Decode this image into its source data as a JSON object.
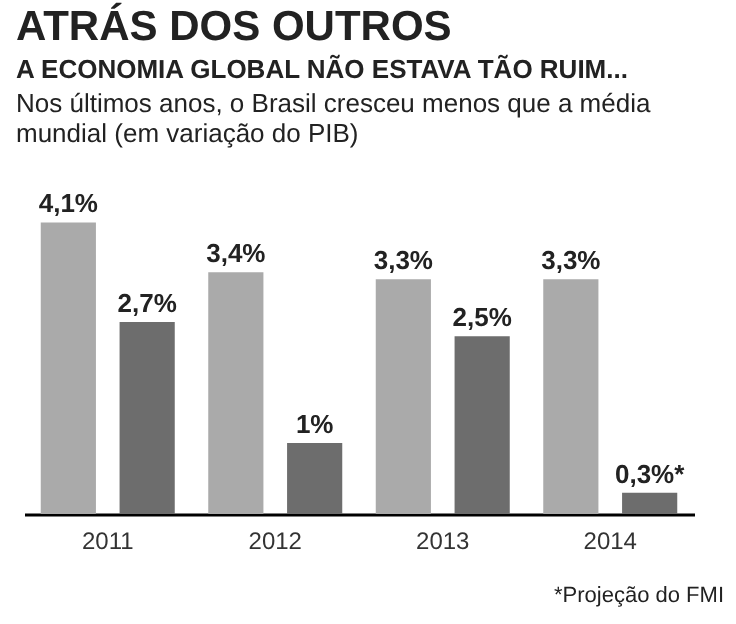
{
  "chart_data": {
    "type": "bar",
    "title": "ATRÁS DOS OUTROS",
    "subtitle": "A ECONOMIA GLOBAL NÃO ESTAVA TÃO RUIM...",
    "categories": [
      "2011",
      "2012",
      "2013",
      "2014"
    ],
    "series": [
      {
        "color": "#aaaaaa",
        "values": [
          4.1,
          3.4,
          3.3,
          3.3
        ],
        "value_labels": [
          "4,1%",
          "3,4%",
          "3,3%",
          "3,3%"
        ]
      },
      {
        "color": "#6d6d6d",
        "values": [
          2.7,
          1,
          2.5,
          0.3
        ],
        "value_labels": [
          "2,7%",
          "1%",
          "2,5%",
          "0,3%*"
        ]
      }
    ],
    "legend": false,
    "grid": false,
    "annotations": [
      "Nos últimos anos, o Brasil cresceu menos que a média mundial (em variação do PIB)",
      "*Projeção do FMI"
    ]
  }
}
